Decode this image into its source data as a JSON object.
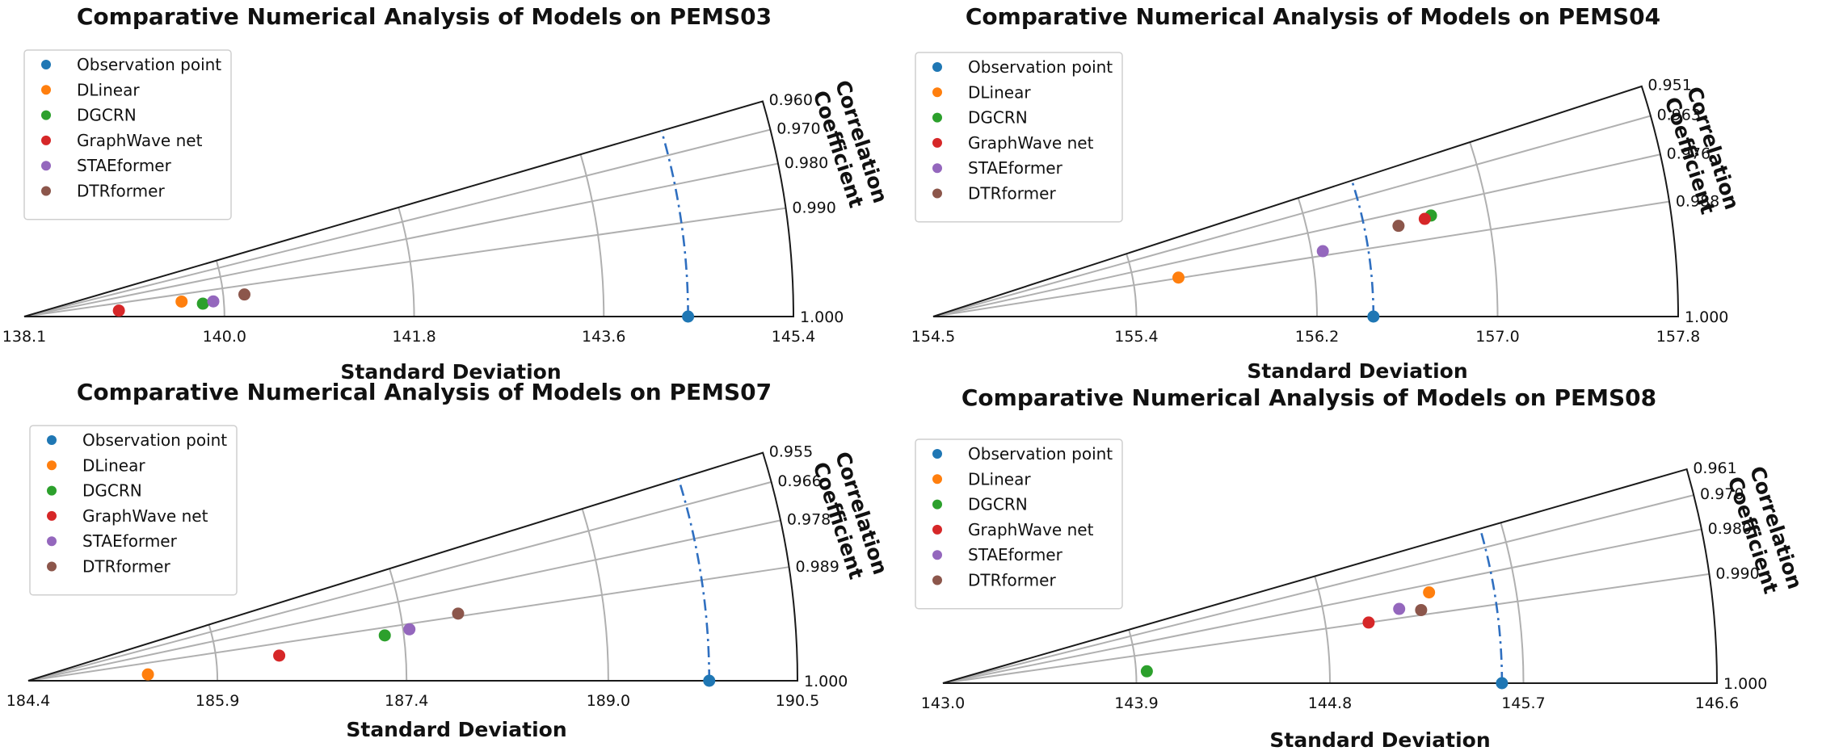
{
  "legend_labels": [
    "Observation point",
    "DLinear",
    "DGCRN",
    "GraphWave net",
    "STAEformer",
    "DTRformer"
  ],
  "colors": {
    "Observation point": "#1f77b4",
    "DLinear": "#ff7f0e",
    "DGCRN": "#2ca02c",
    "GraphWave net": "#d62728",
    "STAEformer": "#9467bd",
    "DTRformer": "#8c564b",
    "reference_curve": "#2f6fc0",
    "grid": "#b0b0b0",
    "frame": "#1a1a1a"
  },
  "chart_data": [
    {
      "type": "taylor-diagram",
      "title": "Comparative Numerical Analysis of Models on PEMS03",
      "xlabel": "Standard Deviation",
      "corr_axis_label": [
        "Correlation",
        "Coefficient"
      ],
      "std_range": [
        138.1,
        145.4
      ],
      "std_ticks": [
        "138.1",
        "140.0",
        "141.8",
        "143.6",
        "145.4"
      ],
      "corr_min": 0.96,
      "corr_ticks": [
        "0.960",
        "0.970",
        "0.980",
        "0.990",
        "1.000"
      ],
      "legend_position": "top-left",
      "reference": {
        "name": "Observation point",
        "std": 144.4,
        "corr": 1.0
      },
      "points": [
        {
          "name": "DLinear",
          "std": 139.6,
          "corr": 0.9955
        },
        {
          "name": "DGCRN",
          "std": 139.8,
          "corr": 0.9974
        },
        {
          "name": "GraphWave net",
          "std": 139.0,
          "corr": 0.998
        },
        {
          "name": "STAEformer",
          "std": 139.9,
          "corr": 0.9968
        },
        {
          "name": "DTRformer",
          "std": 140.2,
          "corr": 0.995
        }
      ]
    },
    {
      "type": "taylor-diagram",
      "title": "Comparative Numerical Analysis of Models on PEMS04",
      "xlabel": "Standard Deviation",
      "corr_axis_label": [
        "Correlation",
        "Coefficient"
      ],
      "std_range": [
        154.5,
        157.8
      ],
      "std_ticks": [
        "154.5",
        "155.4",
        "156.2",
        "157.0",
        "157.8"
      ],
      "corr_min": 0.951,
      "corr_ticks": [
        "0.951",
        "0.963",
        "0.976",
        "0.988",
        "1.000"
      ],
      "legend_position": "top-left",
      "reference": {
        "name": "Observation point",
        "std": 156.45,
        "corr": 1.0
      },
      "points": [
        {
          "name": "DLinear",
          "std": 155.6,
          "corr": 0.9876
        },
        {
          "name": "DGCRN",
          "std": 156.75,
          "corr": 0.98
        },
        {
          "name": "GraphWave net",
          "std": 156.72,
          "corr": 0.9808
        },
        {
          "name": "STAEformer",
          "std": 156.25,
          "corr": 0.9862
        },
        {
          "name": "DTRformer",
          "std": 156.6,
          "corr": 0.9815
        }
      ]
    },
    {
      "type": "taylor-diagram",
      "title": "Comparative Numerical Analysis of Models on PEMS07",
      "xlabel": "Standard Deviation",
      "corr_axis_label": [
        "Correlation",
        "Coefficient"
      ],
      "std_range": [
        184.4,
        190.5
      ],
      "std_ticks": [
        "184.4",
        "185.9",
        "187.4",
        "189.0",
        "190.5"
      ],
      "corr_min": 0.955,
      "corr_ticks": [
        "0.955",
        "0.966",
        "0.978",
        "0.989",
        "1.000"
      ],
      "legend_position": "top-left",
      "reference": {
        "name": "Observation point",
        "std": 189.8,
        "corr": 1.0
      },
      "points": [
        {
          "name": "DLinear",
          "std": 185.35,
          "corr": 0.9986
        },
        {
          "name": "DGCRN",
          "std": 187.25,
          "corr": 0.992
        },
        {
          "name": "GraphWave net",
          "std": 186.4,
          "corr": 0.995
        },
        {
          "name": "STAEformer",
          "std": 187.45,
          "corr": 0.991
        },
        {
          "name": "DTRformer",
          "std": 187.85,
          "corr": 0.988
        }
      ]
    },
    {
      "type": "taylor-diagram",
      "title": "Comparative Numerical Analysis of Models on PEMS08",
      "xlabel": "Standard Deviation",
      "corr_axis_label": [
        "Correlation",
        "Coefficient"
      ],
      "std_range": [
        143.0,
        146.6
      ],
      "std_ticks": [
        "143.0",
        "143.9",
        "144.8",
        "145.7",
        "146.6"
      ],
      "corr_min": 0.961,
      "corr_ticks": [
        "0.961",
        "0.970",
        "0.980",
        "0.990",
        "1.000"
      ],
      "legend_position": "top-left",
      "reference": {
        "name": "Observation point",
        "std": 145.6,
        "corr": 1.0
      },
      "points": [
        {
          "name": "DLinear",
          "std": 145.3,
          "corr": 0.983
        },
        {
          "name": "DGCRN",
          "std": 143.95,
          "corr": 0.9983
        },
        {
          "name": "GraphWave net",
          "std": 145.0,
          "corr": 0.99
        },
        {
          "name": "STAEformer",
          "std": 145.15,
          "corr": 0.987
        },
        {
          "name": "DTRformer",
          "std": 145.25,
          "corr": 0.9885
        }
      ]
    }
  ]
}
